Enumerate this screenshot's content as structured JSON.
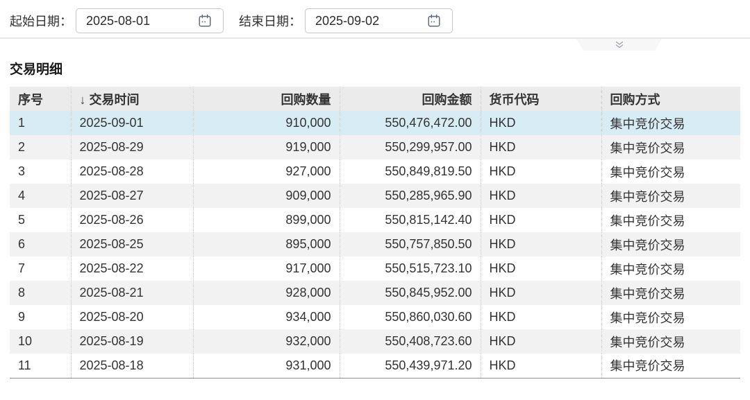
{
  "filters": {
    "start_label": "起始日期：",
    "start_value": "2025-08-01",
    "end_label": "结束日期：",
    "end_value": "2025-09-02"
  },
  "section": {
    "title": "交易明细"
  },
  "table": {
    "sort_arrow": "↓",
    "columns": [
      {
        "key": "index",
        "label": "序号",
        "align": "left"
      },
      {
        "key": "trade_date",
        "label": "交易时间",
        "align": "left",
        "sorted": "desc"
      },
      {
        "key": "quantity",
        "label": "回购数量",
        "align": "right"
      },
      {
        "key": "amount",
        "label": "回购金额",
        "align": "right"
      },
      {
        "key": "currency",
        "label": "货币代码",
        "align": "left"
      },
      {
        "key": "method",
        "label": "回购方式",
        "align": "left"
      }
    ],
    "rows": [
      {
        "index": "1",
        "trade_date": "2025-09-01",
        "quantity": "910,000",
        "amount": "550,476,472.00",
        "currency": "HKD",
        "method": "集中竞价交易",
        "highlighted": true
      },
      {
        "index": "2",
        "trade_date": "2025-08-29",
        "quantity": "919,000",
        "amount": "550,299,957.00",
        "currency": "HKD",
        "method": "集中竞价交易"
      },
      {
        "index": "3",
        "trade_date": "2025-08-28",
        "quantity": "927,000",
        "amount": "550,849,819.50",
        "currency": "HKD",
        "method": "集中竞价交易"
      },
      {
        "index": "4",
        "trade_date": "2025-08-27",
        "quantity": "909,000",
        "amount": "550,285,965.90",
        "currency": "HKD",
        "method": "集中竞价交易"
      },
      {
        "index": "5",
        "trade_date": "2025-08-26",
        "quantity": "899,000",
        "amount": "550,815,142.40",
        "currency": "HKD",
        "method": "集中竞价交易"
      },
      {
        "index": "6",
        "trade_date": "2025-08-25",
        "quantity": "895,000",
        "amount": "550,757,850.50",
        "currency": "HKD",
        "method": "集中竞价交易"
      },
      {
        "index": "7",
        "trade_date": "2025-08-22",
        "quantity": "917,000",
        "amount": "550,515,723.10",
        "currency": "HKD",
        "method": "集中竞价交易"
      },
      {
        "index": "8",
        "trade_date": "2025-08-21",
        "quantity": "928,000",
        "amount": "550,845,952.00",
        "currency": "HKD",
        "method": "集中竞价交易"
      },
      {
        "index": "9",
        "trade_date": "2025-08-20",
        "quantity": "934,000",
        "amount": "550,860,030.60",
        "currency": "HKD",
        "method": "集中竞价交易"
      },
      {
        "index": "10",
        "trade_date": "2025-08-19",
        "quantity": "932,000",
        "amount": "550,408,723.60",
        "currency": "HKD",
        "method": "集中竞价交易"
      },
      {
        "index": "11",
        "trade_date": "2025-08-18",
        "quantity": "931,000",
        "amount": "550,439,971.20",
        "currency": "HKD",
        "method": "集中竞价交易"
      }
    ]
  },
  "colors": {
    "header_bg": "#ebebeb",
    "row_highlight": "#d8ecf6",
    "row_stripe": "#f2f2f2",
    "divider": "#e7e7e7",
    "table_bottom_border": "#8c8c8c",
    "text": "#333333",
    "border_dotted": "#cccccc",
    "input_border": "#c8c8c8",
    "icon_gray": "#5f6b79"
  }
}
